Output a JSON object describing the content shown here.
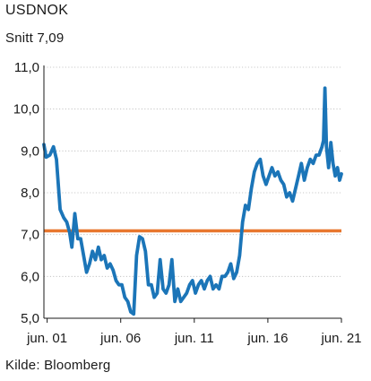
{
  "chart_data": {
    "type": "line",
    "title": "USDNOK",
    "subtitle": "Snitt 7,09",
    "source": "Kilde: Bloomberg",
    "xlabel": "",
    "ylabel": "",
    "x_ticks": [
      {
        "label": "jun. 01",
        "year": 2001.42
      },
      {
        "label": "jun. 06",
        "year": 2006.42
      },
      {
        "label": "jun. 11",
        "year": 2011.42
      },
      {
        "label": "jun. 16",
        "year": 2016.42
      },
      {
        "label": "jun. 21",
        "year": 2021.42
      }
    ],
    "xlim": [
      2001.2,
      2021.42
    ],
    "y_ticks": [
      "11,0",
      "10,0",
      "9,0",
      "8,0",
      "7,0",
      "6,0",
      "5,0"
    ],
    "ylim": [
      5.0,
      11.0
    ],
    "grid": true,
    "average": {
      "label": "Snitt 7,09",
      "value": 7.09,
      "color": "#e8772e"
    },
    "series": [
      {
        "color": "#1b75b8",
        "x": [
          2001.2,
          2001.35,
          2001.6,
          2001.85,
          2002.05,
          2002.3,
          2002.55,
          2002.75,
          2002.95,
          2003.1,
          2003.3,
          2003.5,
          2003.7,
          2003.9,
          2004.1,
          2004.3,
          2004.5,
          2004.7,
          2004.9,
          2005.1,
          2005.3,
          2005.5,
          2005.7,
          2005.9,
          2006.1,
          2006.3,
          2006.5,
          2006.7,
          2006.9,
          2007.1,
          2007.3,
          2007.5,
          2007.7,
          2007.9,
          2008.1,
          2008.3,
          2008.5,
          2008.7,
          2008.9,
          2009.1,
          2009.3,
          2009.5,
          2009.7,
          2009.9,
          2010.1,
          2010.3,
          2010.5,
          2010.7,
          2010.9,
          2011.1,
          2011.3,
          2011.5,
          2011.7,
          2011.9,
          2012.1,
          2012.3,
          2012.5,
          2012.7,
          2012.9,
          2013.1,
          2013.3,
          2013.5,
          2013.7,
          2013.9,
          2014.1,
          2014.3,
          2014.5,
          2014.7,
          2014.9,
          2015.1,
          2015.3,
          2015.5,
          2015.7,
          2015.9,
          2016.1,
          2016.3,
          2016.5,
          2016.7,
          2016.9,
          2017.1,
          2017.3,
          2017.5,
          2017.7,
          2017.9,
          2018.1,
          2018.3,
          2018.5,
          2018.7,
          2018.9,
          2019.1,
          2019.3,
          2019.5,
          2019.7,
          2019.9,
          2020.1,
          2020.2,
          2020.3,
          2020.4,
          2020.55,
          2020.7,
          2020.85,
          2021.0,
          2021.15,
          2021.3,
          2021.42
        ],
        "y": [
          9.15,
          8.85,
          8.9,
          9.1,
          8.8,
          7.6,
          7.4,
          7.3,
          7.05,
          6.7,
          7.5,
          6.9,
          6.9,
          6.5,
          6.1,
          6.3,
          6.6,
          6.4,
          6.7,
          6.4,
          6.5,
          6.2,
          6.3,
          6.15,
          5.9,
          5.8,
          5.8,
          5.5,
          5.4,
          5.15,
          5.1,
          6.5,
          6.95,
          6.9,
          6.6,
          5.8,
          5.8,
          5.5,
          5.6,
          6.4,
          5.7,
          5.6,
          5.8,
          6.4,
          5.4,
          5.7,
          5.4,
          5.5,
          5.6,
          5.8,
          5.9,
          5.6,
          5.8,
          5.9,
          5.7,
          5.9,
          6.0,
          5.7,
          5.8,
          5.7,
          6.0,
          6.0,
          6.1,
          6.3,
          5.95,
          6.1,
          6.5,
          7.3,
          7.7,
          7.6,
          8.1,
          8.5,
          8.7,
          8.8,
          8.4,
          8.2,
          8.4,
          8.6,
          8.4,
          8.5,
          8.3,
          8.2,
          7.9,
          8.0,
          7.8,
          8.1,
          8.4,
          8.7,
          8.3,
          8.6,
          8.8,
          8.7,
          8.9,
          8.9,
          9.1,
          9.25,
          10.5,
          9.1,
          8.6,
          9.2,
          8.7,
          8.4,
          8.6,
          8.3,
          8.45
        ]
      }
    ]
  }
}
